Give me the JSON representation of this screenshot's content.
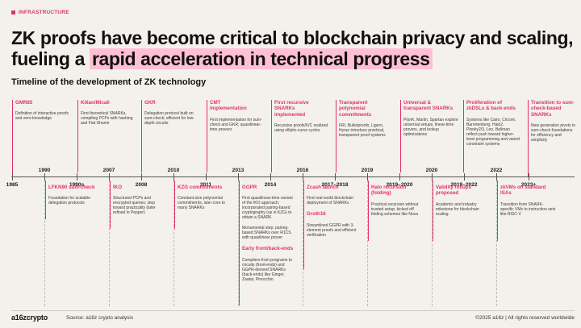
{
  "tag": "INFRASTRUCTURE",
  "headline": {
    "line1": "ZK proofs have become critical to blockchain privacy and scaling,",
    "line2_plain": "fueling a ",
    "line2_highlight": "rapid acceleration in technical progress"
  },
  "subhead": "Timeline of the development of ZK technology",
  "years_top": [
    "1990",
    "2007",
    "2010",
    "2013",
    "2016",
    "2019",
    "2020",
    "2022"
  ],
  "years_bottom": [
    "1985",
    "1990s",
    "2008",
    "2011",
    "2014",
    "2017–2018",
    "2019–2020",
    "2019–2022",
    "2023+"
  ],
  "events_top": [
    {
      "title": "GMR85",
      "desc": "Definition of interactive proofs and zero-knowledge"
    },
    {
      "title": "Kilian/Micali",
      "desc": "First theoretical SNARKs, compiling PCPs with hashing and Fiat-Shamir"
    },
    {
      "title": "GKR",
      "desc": "Delegation protocol built on sum-check; efficient for low-depth circuits"
    },
    {
      "title": "CMT implementation",
      "desc": "First implementation for sum-check and GKR; quasilinear-time provers"
    },
    {
      "title": "First recursive SNARKs implemented",
      "desc": "Recursive proofs/IVC realized using elliptic-curve cycles"
    },
    {
      "title": "Transparent polynomial commitments",
      "desc": "FRI, Bulletproofs, Ligero, Hyrax introduce practical, transparent proof systems"
    },
    {
      "title": "Universal & transparent SNARKs",
      "desc": "PlonK, Marlin, Spartan explore universal setups, linear-time provers, and lookup optimizations"
    },
    {
      "title": "Proliferation of zkDSLs & back-ends",
      "desc": "Systems like Cairo, Circom, Barretenberg, Halo2, Plonky2/3, Leo, Bellman reflect push toward higher-level programming and varied constraint systems"
    },
    {
      "title": "Transition to sum-check-based SNARKs",
      "desc": "New generation pivots to sum-check foundations for efficiency and simplicity"
    }
  ],
  "events_bottom": [
    {
      "title": "LFKN90 sum-check",
      "desc": "Foundation for scalable delegation protocols"
    },
    {
      "title": "IKO",
      "desc": "Structured PCPs and encrypted queries; step toward practicality (later refined in Pepper)"
    },
    {
      "title": "KZG commitments",
      "desc": "Constant-size polynomial commitments, later core to many SNARKs"
    },
    {
      "title": "GGPR",
      "desc": "First quasilinear-time variant of the IKO approach; incorporated pairing-based cryptography (as in KZG) to obtain a SNARK",
      "desc2": "Monumental step: pairing-based SNARKs over R1CS with quasilinear prover",
      "title2": "Early front/back-ends",
      "desc3": "Compilers from programs to circuits (front-ends) and GGPR-derived SNARKs (back-ends) like Ginger, Zaatar, Pinocchio"
    },
    {
      "title": "Zcash launch",
      "desc": "First real-world blockchain deployment of SNARKs",
      "title2": "Groth16",
      "desc2": "Streamlined GGPR with 3-element proofs and efficient verification"
    },
    {
      "title": "Halo recursion (folding)",
      "desc": "Practical recursion without trusted setup; kicked off folding schemes like Nova"
    },
    {
      "title": "Validity rollups proposed",
      "desc": "Academic and industry milestone for blockchain scaling"
    },
    {
      "title": "zkVMs on standard ISAs",
      "desc": "Transition from SNARK-specific VMs to instruction sets like RISC-V"
    }
  ],
  "footer": {
    "logo": "a16zcrypto",
    "source": "Source: a16z crypto analysis",
    "rights": "©2025 a16z | All rights reserved worldwide"
  },
  "colors": {
    "accent": "#e2306c",
    "highlight": "#ffc0d4",
    "background": "#f4f1ec"
  }
}
